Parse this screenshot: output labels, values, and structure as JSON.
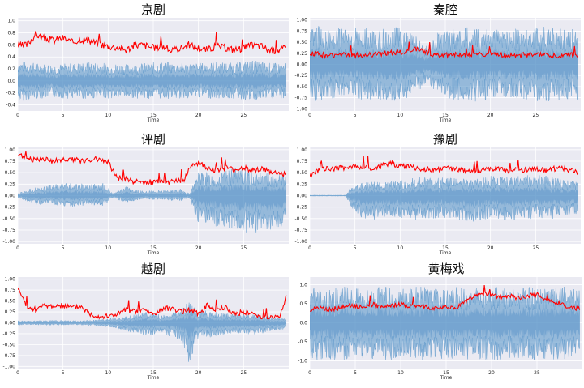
{
  "colors": {
    "waveform": "#4f8fc6",
    "envelope": "#ff0000",
    "plot_bg": "#eaeaf2",
    "grid": "#ffffff"
  },
  "chart_data": [
    {
      "type": "line",
      "title": "京剧",
      "xlabel": "Time",
      "xlim": [
        0,
        30
      ],
      "ylim": [
        -0.5,
        1.05
      ],
      "xticks": [
        0,
        5,
        10,
        15,
        20,
        25
      ],
      "yticks": [
        -0.4,
        -0.2,
        0.0,
        0.2,
        0.4,
        0.6,
        0.8,
        1.0
      ],
      "ytick_labels": [
        "-0.4",
        "-0.2",
        "0.0",
        "0.2",
        "0.4",
        "0.6",
        "0.8",
        "1.0"
      ],
      "series": [
        {
          "kind": "waveform",
          "x": [
            0,
            2,
            4,
            6,
            8,
            10,
            12,
            14,
            16,
            18,
            20,
            22,
            24,
            26,
            28,
            29.7
          ],
          "upper": [
            0.35,
            0.3,
            0.28,
            0.3,
            0.32,
            0.3,
            0.28,
            0.3,
            0.32,
            0.3,
            0.3,
            0.32,
            0.3,
            0.35,
            0.3,
            0.3
          ],
          "lower": [
            -0.35,
            -0.3,
            -0.28,
            -0.3,
            -0.3,
            -0.3,
            -0.28,
            -0.3,
            -0.3,
            -0.3,
            -0.28,
            -0.3,
            -0.3,
            -0.35,
            -0.3,
            -0.3
          ]
        },
        {
          "kind": "envelope",
          "x": [
            0,
            1,
            2,
            3,
            4,
            5,
            6,
            7,
            8,
            9,
            10,
            11,
            12,
            13,
            14,
            15,
            16,
            17,
            18,
            19,
            20,
            21,
            22,
            23,
            24,
            25,
            26,
            27,
            28,
            29,
            29.7
          ],
          "y": [
            0.58,
            0.6,
            0.78,
            0.7,
            0.68,
            0.72,
            0.64,
            0.7,
            0.66,
            0.62,
            0.58,
            0.56,
            0.52,
            0.6,
            0.6,
            0.55,
            0.58,
            0.5,
            0.55,
            0.6,
            0.55,
            0.52,
            0.58,
            0.55,
            0.52,
            0.55,
            0.6,
            0.58,
            0.5,
            0.52,
            0.55
          ]
        }
      ]
    },
    {
      "type": "line",
      "title": "秦腔",
      "xlabel": "Time",
      "xlim": [
        0,
        30
      ],
      "ylim": [
        -1.05,
        1.05
      ],
      "xticks": [
        0,
        5,
        10,
        15,
        20,
        25
      ],
      "yticks": [
        -1.0,
        -0.75,
        -0.5,
        -0.25,
        0.0,
        0.25,
        0.5,
        0.75,
        1.0
      ],
      "ytick_labels": [
        "-1.00",
        "-0.75",
        "-0.50",
        "-0.25",
        "0.00",
        "0.25",
        "0.50",
        "0.75",
        "1.00"
      ],
      "series": [
        {
          "kind": "waveform",
          "x": [
            0,
            2,
            4,
            6,
            8,
            10,
            12,
            13,
            14,
            16,
            18,
            20,
            22,
            24,
            26,
            28,
            29.7
          ],
          "upper": [
            0.9,
            0.85,
            0.8,
            0.85,
            0.8,
            0.85,
            0.6,
            0.4,
            0.7,
            0.8,
            0.85,
            0.8,
            0.85,
            0.8,
            0.85,
            0.8,
            0.8
          ],
          "lower": [
            -0.85,
            -0.8,
            -0.75,
            -0.8,
            -0.8,
            -0.85,
            -0.6,
            -0.4,
            -0.7,
            -0.8,
            -0.85,
            -0.8,
            -0.8,
            -0.8,
            -0.85,
            -0.8,
            -0.8
          ]
        },
        {
          "kind": "envelope",
          "x": [
            0,
            2,
            4,
            6,
            8,
            10,
            12,
            14,
            16,
            18,
            20,
            22,
            24,
            26,
            28,
            29.7
          ],
          "y": [
            0.25,
            0.2,
            0.22,
            0.2,
            0.25,
            0.28,
            0.35,
            0.2,
            0.22,
            0.2,
            0.25,
            0.2,
            0.22,
            0.2,
            0.2,
            0.22
          ]
        }
      ]
    },
    {
      "type": "line",
      "title": "评剧",
      "xlabel": "Time",
      "xlim": [
        0,
        30
      ],
      "ylim": [
        -1.05,
        1.05
      ],
      "xticks": [
        0,
        5,
        10,
        15,
        20,
        25
      ],
      "yticks": [
        -1.0,
        -0.75,
        -0.5,
        -0.25,
        0.0,
        0.25,
        0.5,
        0.75,
        1.0
      ],
      "ytick_labels": [
        "-1.00",
        "-0.75",
        "-0.50",
        "-0.25",
        "0.00",
        "0.25",
        "0.50",
        "0.75",
        "1.00"
      ],
      "series": [
        {
          "kind": "waveform",
          "x": [
            0,
            2,
            4,
            6,
            8,
            9.5,
            10.5,
            12,
            14,
            16,
            18,
            19,
            20,
            22,
            24,
            26,
            28,
            29.7
          ],
          "upper": [
            0.05,
            0.2,
            0.25,
            0.3,
            0.25,
            0.3,
            0.05,
            0.2,
            0.1,
            0.12,
            0.15,
            0.05,
            0.55,
            0.5,
            0.6,
            0.55,
            0.5,
            0.45
          ],
          "lower": [
            -0.05,
            -0.2,
            -0.2,
            -0.25,
            -0.2,
            -0.25,
            -0.05,
            -0.15,
            -0.08,
            -0.1,
            -0.12,
            -0.05,
            -0.6,
            -0.7,
            -0.8,
            -0.85,
            -0.75,
            -0.7
          ]
        },
        {
          "kind": "envelope",
          "x": [
            0,
            1,
            2,
            3,
            4,
            5,
            6,
            7,
            8,
            9,
            10,
            10.5,
            11,
            12,
            13,
            14,
            15,
            16,
            17,
            18,
            18.5,
            19,
            20,
            21,
            22,
            23,
            24,
            25,
            26,
            27,
            28,
            29,
            29.7
          ],
          "y": [
            0.9,
            0.8,
            0.78,
            0.8,
            0.75,
            0.78,
            0.8,
            0.75,
            0.78,
            0.8,
            0.75,
            0.55,
            0.4,
            0.35,
            0.3,
            0.28,
            0.3,
            0.32,
            0.3,
            0.32,
            0.35,
            0.65,
            0.7,
            0.6,
            0.55,
            0.6,
            0.55,
            0.6,
            0.55,
            0.58,
            0.5,
            0.48,
            0.45
          ]
        }
      ]
    },
    {
      "type": "line",
      "title": "豫剧",
      "xlabel": "Time",
      "xlim": [
        0,
        30
      ],
      "ylim": [
        -1.05,
        1.05
      ],
      "xticks": [
        0,
        5,
        10,
        15,
        20,
        25
      ],
      "yticks": [
        -1.0,
        -0.75,
        -0.5,
        -0.25,
        0.0,
        0.25,
        0.5,
        0.75,
        1.0
      ],
      "ytick_labels": [
        "-1.00",
        "-0.75",
        "-0.50",
        "-0.25",
        "0.00",
        "0.25",
        "0.50",
        "0.75",
        "1.00"
      ],
      "series": [
        {
          "kind": "waveform",
          "x": [
            0,
            2,
            4,
            4.5,
            6,
            8,
            10,
            12,
            14,
            16,
            18,
            20,
            22,
            24,
            26,
            28,
            29.7
          ],
          "upper": [
            0.01,
            0.01,
            0.01,
            0.2,
            0.3,
            0.3,
            0.35,
            0.4,
            0.4,
            0.4,
            0.35,
            0.45,
            0.4,
            0.45,
            0.45,
            0.35,
            0.3
          ],
          "lower": [
            -0.01,
            -0.01,
            -0.01,
            -0.25,
            -0.55,
            -0.5,
            -0.5,
            -0.55,
            -0.5,
            -0.5,
            -0.6,
            -0.5,
            -0.55,
            -0.5,
            -0.55,
            -0.45,
            -0.4
          ]
        },
        {
          "kind": "envelope",
          "x": [
            0,
            1,
            2,
            3,
            4,
            5,
            6,
            7,
            8,
            9,
            10,
            11,
            12,
            13,
            14,
            15,
            16,
            17,
            18,
            19,
            20,
            21,
            22,
            23,
            24,
            25,
            26,
            27,
            28,
            29,
            29.7
          ],
          "y": [
            0.45,
            0.55,
            0.6,
            0.58,
            0.62,
            0.65,
            0.62,
            0.6,
            0.65,
            0.7,
            0.65,
            0.62,
            0.6,
            0.58,
            0.55,
            0.6,
            0.58,
            0.55,
            0.52,
            0.55,
            0.58,
            0.6,
            0.55,
            0.58,
            0.55,
            0.6,
            0.55,
            0.58,
            0.6,
            0.55,
            0.52
          ]
        }
      ]
    },
    {
      "type": "line",
      "title": "越剧",
      "xlabel": "Time",
      "xlim": [
        0,
        30
      ],
      "ylim": [
        -1.05,
        1.05
      ],
      "xticks": [
        0,
        5,
        10,
        15,
        20,
        25
      ],
      "yticks": [
        -1.0,
        -0.75,
        -0.5,
        -0.25,
        0.0,
        0.25,
        0.5,
        0.75,
        1.0
      ],
      "ytick_labels": [
        "-1.00",
        "-0.75",
        "-0.50",
        "-0.25",
        "0.00",
        "0.25",
        "0.50",
        "0.75",
        "1.00"
      ],
      "series": [
        {
          "kind": "waveform",
          "x": [
            0,
            2,
            4,
            6,
            8,
            10,
            12,
            14,
            16,
            18,
            19,
            19.5,
            20,
            22,
            24,
            26,
            28,
            29.7
          ],
          "upper": [
            0.05,
            0.05,
            0.06,
            0.05,
            0.06,
            0.1,
            0.15,
            0.25,
            0.2,
            0.3,
            0.5,
            0.4,
            0.3,
            0.25,
            0.2,
            0.2,
            0.15,
            0.1
          ],
          "lower": [
            -0.05,
            -0.05,
            -0.06,
            -0.05,
            -0.06,
            -0.1,
            -0.2,
            -0.3,
            -0.25,
            -0.4,
            -0.95,
            -0.6,
            -0.4,
            -0.3,
            -0.25,
            -0.3,
            -0.2,
            -0.15
          ]
        },
        {
          "kind": "envelope",
          "x": [
            0,
            1,
            2,
            3,
            4,
            5,
            6,
            7,
            8,
            9,
            10,
            11,
            12,
            13,
            14,
            15,
            16,
            17,
            18,
            19,
            20,
            21,
            22,
            23,
            24,
            25,
            26,
            27,
            28,
            29,
            29.7
          ],
          "y": [
            0.8,
            0.35,
            0.3,
            0.4,
            0.38,
            0.4,
            0.35,
            0.38,
            0.2,
            0.15,
            0.15,
            0.2,
            0.3,
            0.25,
            0.3,
            0.2,
            0.3,
            0.35,
            0.25,
            0.3,
            0.2,
            0.4,
            0.3,
            0.35,
            0.2,
            0.25,
            0.2,
            0.15,
            0.12,
            0.15,
            0.6
          ]
        }
      ]
    },
    {
      "type": "line",
      "title": "黄梅戏",
      "xlabel": "Time",
      "xlim": [
        0,
        30
      ],
      "ylim": [
        -1.2,
        1.2
      ],
      "xticks": [
        0,
        5,
        10,
        15,
        20,
        25
      ],
      "yticks": [
        -1.0,
        -0.5,
        0.0,
        0.5,
        1.0
      ],
      "ytick_labels": [
        "-1.0",
        "-0.5",
        "0.0",
        "0.5",
        "1.0"
      ],
      "series": [
        {
          "kind": "waveform",
          "x": [
            0,
            2,
            4,
            6,
            8,
            10,
            12,
            14,
            16,
            18,
            20,
            22,
            24,
            26,
            28,
            29.7
          ],
          "upper": [
            0.95,
            0.9,
            0.95,
            0.9,
            0.95,
            0.9,
            0.95,
            0.9,
            0.95,
            0.9,
            0.95,
            0.9,
            0.95,
            0.9,
            0.95,
            0.9
          ],
          "lower": [
            -1.0,
            -0.95,
            -1.0,
            -0.95,
            -1.0,
            -0.95,
            -1.0,
            -0.95,
            -1.0,
            -0.95,
            -1.0,
            -0.95,
            -1.0,
            -0.95,
            -1.0,
            -0.95
          ]
        },
        {
          "kind": "envelope",
          "x": [
            0,
            1,
            2,
            3,
            4,
            5,
            6,
            7,
            8,
            9,
            10,
            11,
            12,
            13,
            14,
            15,
            16,
            17,
            18,
            19,
            20,
            21,
            22,
            23,
            24,
            25,
            26,
            27,
            28,
            29,
            29.7
          ],
          "y": [
            0.35,
            0.4,
            0.35,
            0.38,
            0.45,
            0.42,
            0.45,
            0.48,
            0.4,
            0.45,
            0.5,
            0.42,
            0.45,
            0.4,
            0.38,
            0.4,
            0.38,
            0.55,
            0.7,
            0.75,
            0.72,
            0.68,
            0.7,
            0.65,
            0.7,
            0.75,
            0.6,
            0.55,
            0.45,
            0.4,
            0.35
          ]
        }
      ]
    }
  ]
}
